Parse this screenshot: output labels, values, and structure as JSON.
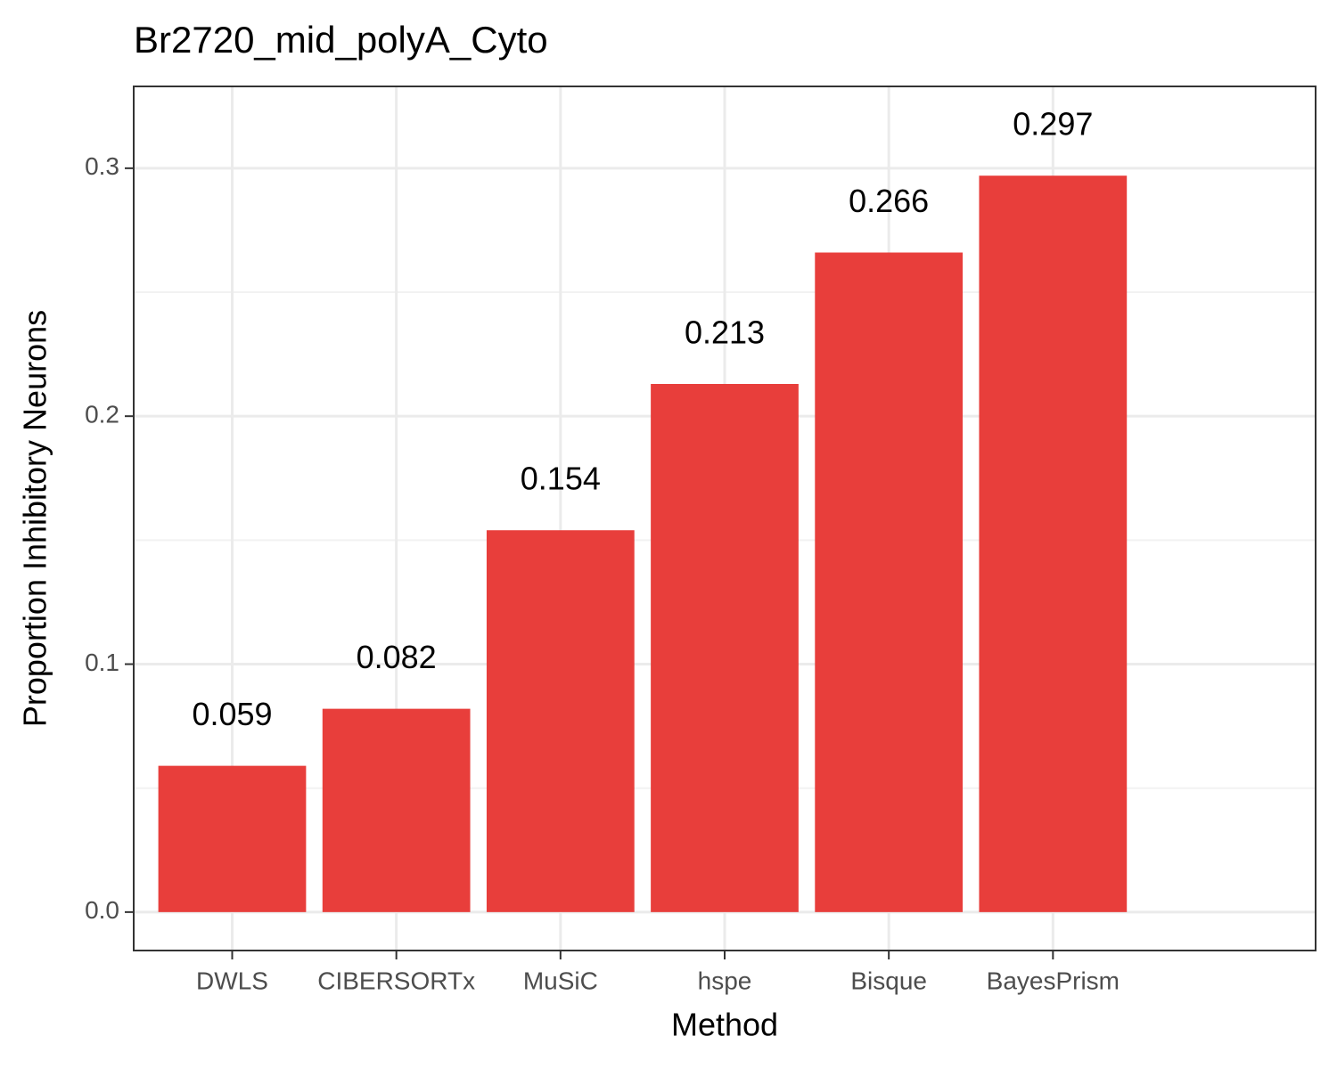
{
  "chart_data": {
    "type": "bar",
    "title": "Br2720_mid_polyA_Cyto",
    "x_label": "Method",
    "y_label": "Proportion Inhibitory Neurons",
    "categories": [
      "DWLS",
      "CIBERSORTx",
      "MuSiC",
      "hspe",
      "Bisque",
      "BayesPrism"
    ],
    "values": [
      0.059,
      0.082,
      0.154,
      0.213,
      0.266,
      0.297
    ],
    "color": "#e83e3b",
    "ylim": [
      -0.0155,
      0.333
    ],
    "yticks": [
      {
        "value": 0,
        "label": "0.0"
      },
      0.1,
      0.2,
      0.3
    ],
    "minor_yticks": [
      0.05,
      0.15,
      0.25
    ],
    "grid": true
  }
}
